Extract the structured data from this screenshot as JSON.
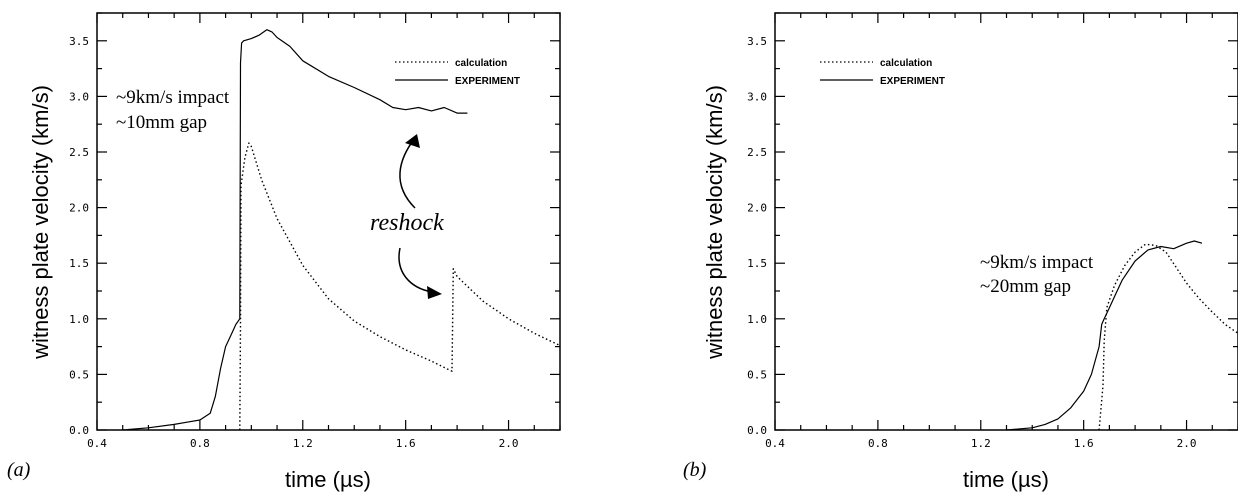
{
  "chart_data": [
    {
      "panel_label": "(a)",
      "type": "line",
      "xlabel": "time (µs)",
      "ylabel": "witness plate velocity (km/s)",
      "xlim": [
        0.4,
        2.2
      ],
      "ylim": [
        0.0,
        3.75
      ],
      "xticks": [
        "0.4",
        "0.8",
        "1.2",
        "1.6",
        "2.0"
      ],
      "yticks": [
        "0.0",
        "0.5",
        "1.0",
        "1.5",
        "2.0",
        "2.5",
        "3.0",
        "3.5"
      ],
      "legend": {
        "placement": "top-right",
        "entries": [
          "calculation",
          "EXPERIMENT"
        ]
      },
      "annotations": {
        "impact": "~9km/s impact",
        "gap": "~10mm gap",
        "reshock": "reshock"
      },
      "series": [
        {
          "name": "calculation",
          "style": "dotted",
          "x": [
            0.955,
            0.958,
            0.96,
            0.975,
            0.99,
            1.0,
            1.04,
            1.1,
            1.2,
            1.3,
            1.4,
            1.5,
            1.6,
            1.7,
            1.77,
            1.78,
            1.785,
            1.8,
            1.9,
            2.0,
            2.1,
            2.2
          ],
          "y": [
            0.0,
            0.95,
            2.2,
            2.45,
            2.58,
            2.55,
            2.25,
            1.9,
            1.48,
            1.18,
            0.98,
            0.84,
            0.72,
            0.62,
            0.54,
            0.53,
            1.45,
            1.38,
            1.16,
            1.0,
            0.87,
            0.76
          ]
        },
        {
          "name": "EXPERIMENT",
          "style": "solid",
          "x": [
            0.5,
            0.6,
            0.7,
            0.75,
            0.8,
            0.84,
            0.86,
            0.88,
            0.9,
            0.92,
            0.94,
            0.955,
            0.958,
            0.962,
            0.97,
            1.0,
            1.03,
            1.06,
            1.08,
            1.1,
            1.15,
            1.2,
            1.3,
            1.4,
            1.5,
            1.55,
            1.6,
            1.65,
            1.7,
            1.75,
            1.8,
            1.84
          ],
          "y": [
            0.0,
            0.02,
            0.05,
            0.07,
            0.09,
            0.15,
            0.3,
            0.55,
            0.75,
            0.85,
            0.95,
            1.0,
            3.3,
            3.48,
            3.5,
            3.52,
            3.55,
            3.6,
            3.58,
            3.53,
            3.45,
            3.32,
            3.18,
            3.08,
            2.97,
            2.9,
            2.88,
            2.9,
            2.87,
            2.9,
            2.85,
            2.85
          ]
        }
      ]
    },
    {
      "panel_label": "(b)",
      "type": "line",
      "xlabel": "time (µs)",
      "ylabel": "witness plate velocity (km/s)",
      "xlim": [
        0.4,
        2.2
      ],
      "ylim": [
        0.0,
        3.75
      ],
      "xticks": [
        "0.4",
        "0.8",
        "1.2",
        "1.6",
        "2.0"
      ],
      "yticks": [
        "0.0",
        "0.5",
        "1.0",
        "1.5",
        "2.0",
        "2.5",
        "3.0",
        "3.5"
      ],
      "legend": {
        "placement": "top-left",
        "entries": [
          "calculation",
          "EXPERIMENT"
        ]
      },
      "annotations": {
        "impact": "~9km/s impact",
        "gap": "~20mm gap"
      },
      "series": [
        {
          "name": "calculation",
          "style": "dotted",
          "x": [
            1.66,
            1.675,
            1.68,
            1.69,
            1.72,
            1.76,
            1.8,
            1.84,
            1.88,
            1.92,
            1.96,
            2.0,
            2.05,
            2.1,
            2.15,
            2.2
          ],
          "y": [
            0.0,
            0.4,
            0.8,
            1.1,
            1.3,
            1.48,
            1.6,
            1.67,
            1.66,
            1.6,
            1.46,
            1.32,
            1.18,
            1.06,
            0.95,
            0.87
          ]
        },
        {
          "name": "EXPERIMENT",
          "style": "solid",
          "x": [
            1.3,
            1.4,
            1.45,
            1.5,
            1.55,
            1.6,
            1.63,
            1.66,
            1.67,
            1.68,
            1.7,
            1.72,
            1.75,
            1.8,
            1.85,
            1.9,
            1.95,
            2.0,
            2.03,
            2.06
          ],
          "y": [
            0.0,
            0.02,
            0.05,
            0.1,
            0.2,
            0.35,
            0.5,
            0.75,
            0.95,
            1.0,
            1.1,
            1.2,
            1.35,
            1.52,
            1.62,
            1.65,
            1.63,
            1.68,
            1.7,
            1.68
          ]
        }
      ]
    }
  ]
}
